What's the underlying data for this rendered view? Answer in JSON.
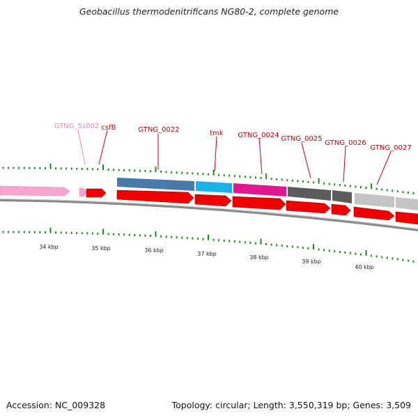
{
  "header": {
    "title": "Geobacillus thermodenitrificans NG80-2, complete genome"
  },
  "footer": {
    "accession": "Accession: NC_009328",
    "summary": "Topology: circular; Length: 3,550,319 bp; Genes: 3,509"
  },
  "genome_map": {
    "gene_labels": [
      {
        "name": "GTNG_5s002",
        "color": "#ef86bf"
      },
      {
        "name": "csfB",
        "color": "#c0000c"
      },
      {
        "name": "GTNG_0022",
        "color": "#c0000c"
      },
      {
        "name": "tmk",
        "color": "#c0000c"
      },
      {
        "name": "GTNG_0024",
        "color": "#c0000c"
      },
      {
        "name": "GTNG_0025",
        "color": "#c0000c"
      },
      {
        "name": "GTNG_0026",
        "color": "#c0000c"
      },
      {
        "name": "GTNG_0027",
        "color": "#c0000c"
      }
    ],
    "scale_labels": [
      "34 kbp",
      "35 kbp",
      "36 kbp",
      "37 kbp",
      "38 kbp",
      "39 kbp",
      "40 kbp"
    ],
    "colors": {
      "rrna": "#f4a6cf",
      "cds": "#ee0000",
      "gene_blue": "#4a7aaa",
      "gene_cyan": "#1ab0e8",
      "gene_magenta": "#e01890",
      "gene_dark": "#5c5c5c",
      "gene_light": "#c4c4c4",
      "backbone": "#8a8a8a",
      "tick": "#1a8a1a"
    }
  }
}
